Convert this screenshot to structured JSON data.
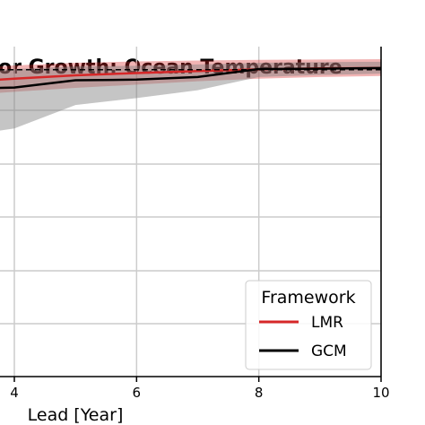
{
  "chart_data": {
    "type": "line",
    "title": "or Growth: Ocean Temperature",
    "xlabel": "Lead [Year]",
    "ylabel": "",
    "xlim": [
      3.75,
      10.0
    ],
    "ylim": [
      0,
      100
    ],
    "x_ticks": [
      4,
      6,
      8,
      10
    ],
    "grid": true,
    "legend": {
      "title": "Framework",
      "placement": "lower-right",
      "entries": [
        "LMR",
        "GCM"
      ]
    },
    "series": [
      {
        "name": "LMR",
        "color": "#d62728",
        "x": [
          3.75,
          4,
          5,
          6,
          7,
          8,
          9,
          10
        ],
        "values": [
          90,
          90.3,
          91.3,
          92,
          92.6,
          93.1,
          93.4,
          93.5
        ],
        "band_lower": [
          86,
          86.3,
          87.5,
          88.5,
          89.5,
          90.3,
          90.8,
          91.1
        ],
        "band_upper": [
          94,
          94.3,
          95.1,
          95.5,
          95.8,
          96,
          96.1,
          96.2
        ]
      },
      {
        "name": "GCM",
        "color": "#000000",
        "x": [
          3.75,
          4,
          5,
          6,
          7,
          8,
          9,
          10
        ],
        "values": [
          87.5,
          87.6,
          89.8,
          90,
          90.8,
          93.2,
          93.3,
          93.5
        ],
        "band_lower": [
          74.5,
          75.2,
          82.3,
          84.4,
          86.8,
          90.8,
          91.4,
          91.8
        ],
        "band_upper": [
          93,
          93.2,
          94,
          94.2,
          94.6,
          95.1,
          95.3,
          95.4
        ]
      },
      {
        "name": "",
        "color": "#000000",
        "style": "dashed",
        "x": [
          3.75,
          10
        ],
        "values": [
          93,
          93
        ]
      }
    ]
  }
}
